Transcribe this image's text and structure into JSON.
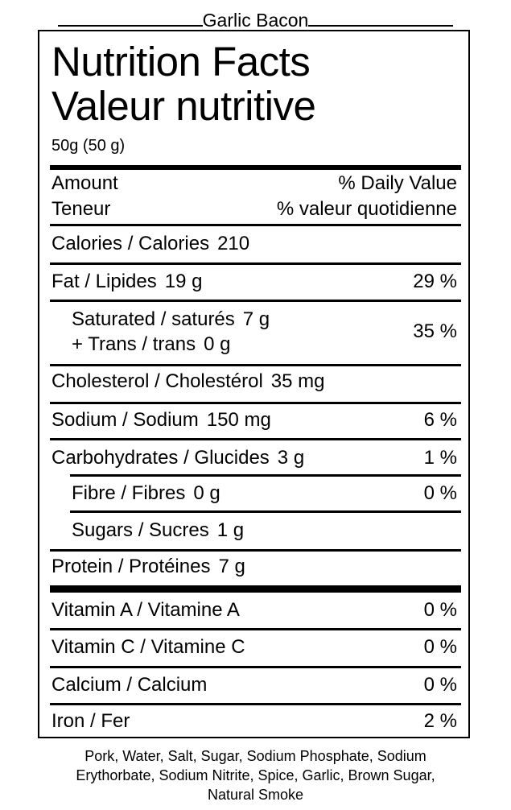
{
  "product_name": "Garlic Bacon",
  "title_en": "Nutrition Facts",
  "title_fr": "Valeur nutritive",
  "serving": "50g (50 g)",
  "header": {
    "amount_en": "Amount",
    "amount_fr": "Teneur",
    "dv_en": "% Daily Value",
    "dv_fr": "% valeur quotidienne"
  },
  "calories": {
    "label": "Calories / Calories",
    "value": "210"
  },
  "fat": {
    "label": "Fat / Lipides",
    "value": "19 g",
    "dv": "29 %"
  },
  "saturated": {
    "label": "Saturated / saturés",
    "value": "7 g",
    "trans_label": "+ Trans / trans",
    "trans_value": "0 g",
    "dv": "35 %"
  },
  "cholesterol": {
    "label": "Cholesterol / Cholestérol",
    "value": "35 mg"
  },
  "sodium": {
    "label": "Sodium / Sodium",
    "value": "150 mg",
    "dv": "6 %"
  },
  "carbohydrates": {
    "label": "Carbohydrates / Glucides",
    "value": "3 g",
    "dv": "1 %"
  },
  "fibre": {
    "label": "Fibre / Fibres",
    "value": "0 g",
    "dv": "0 %"
  },
  "sugars": {
    "label": "Sugars / Sucres",
    "value": "1 g"
  },
  "protein": {
    "label": "Protein / Protéines",
    "value": "7 g"
  },
  "vitamin_a": {
    "label": "Vitamin A / Vitamine A",
    "dv": "0 %"
  },
  "vitamin_c": {
    "label": "Vitamin C / Vitamine C",
    "dv": "0 %"
  },
  "calcium": {
    "label": "Calcium / Calcium",
    "dv": "0 %"
  },
  "iron": {
    "label": "Iron / Fer",
    "dv": "2 %"
  },
  "ingredients": {
    "line1": "Pork, Water, Salt, Sugar, Sodium Phosphate, Sodium",
    "line2": "Erythorbate, Sodium Nitrite, Spice, Garlic, Brown Sugar,",
    "line3": "Natural Smoke"
  }
}
